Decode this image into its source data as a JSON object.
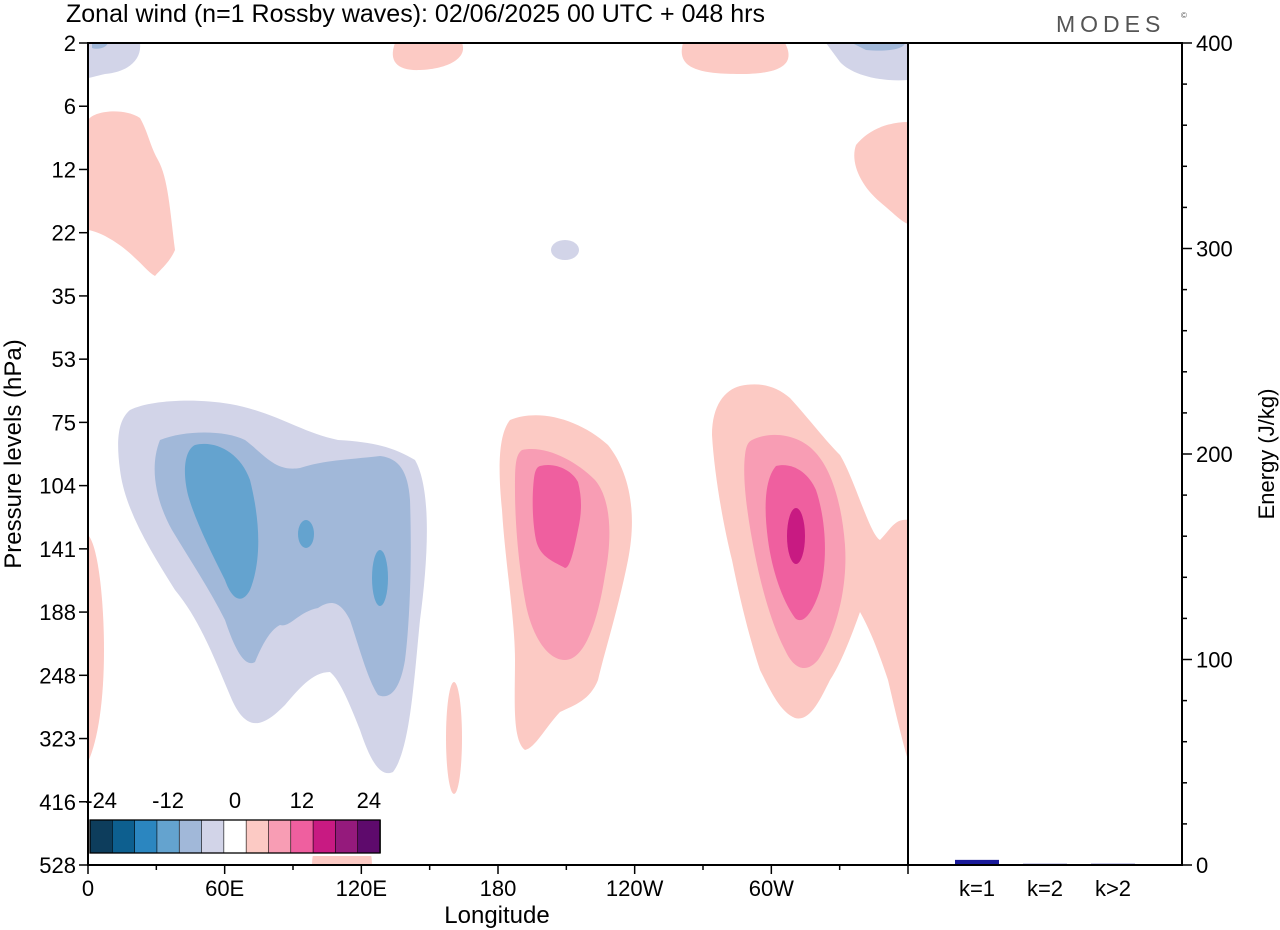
{
  "title": "Zonal wind (n=1 Rossby waves):  02/06/2025  00 UTC  + 048 hrs",
  "brand": "MODES",
  "brand_mark": "©",
  "chart_data": [
    {
      "type": "heatmap",
      "xlabel": "Longitude",
      "ylabel": "Pressure levels (hPa)",
      "x_ticks": [
        "0",
        "60E",
        "120E",
        "180",
        "120W",
        "60W"
      ],
      "y_ticks": [
        "2",
        "6",
        "12",
        "22",
        "35",
        "53",
        "75",
        "104",
        "141",
        "188",
        "248",
        "323",
        "416",
        "528"
      ],
      "colorbar": {
        "tick_labels": [
          "-24",
          "-12",
          "0",
          "12",
          "24"
        ],
        "levels": [
          -24,
          -20,
          -16,
          -12,
          -8,
          -4,
          0,
          4,
          8,
          12,
          16,
          20,
          24
        ],
        "colors": [
          "#0d3d5c",
          "#0d5f8f",
          "#2b86c0",
          "#64a3cf",
          "#a1b8d9",
          "#d2d4e8",
          "#ffffff",
          "#fccac4",
          "#f89db4",
          "#ef5f9f",
          "#c81a82",
          "#951a7c",
          "#5e0a6c"
        ]
      },
      "features": [
        {
          "label": "negative anomaly",
          "lon": [
            10,
            150
          ],
          "level_hPa": [
            75,
            416
          ],
          "min": -16
        },
        {
          "label": "positive anomaly",
          "lon": [
            185,
            235
          ],
          "level_hPa": [
            75,
            323
          ],
          "max": 16
        },
        {
          "label": "positive anomaly",
          "lon": [
            275,
            345
          ],
          "level_hPa": [
            75,
            323
          ],
          "max": 20
        },
        {
          "label": "weak positive",
          "lon": [
            0,
            40
          ],
          "level_hPa": [
            6,
            30
          ],
          "max": 4
        },
        {
          "label": "weak positive",
          "lon": [
            340,
            360
          ],
          "level_hPa": [
            8,
            20
          ],
          "max": 4
        },
        {
          "label": "weak negative",
          "lon": [
            0,
            20
          ],
          "level_hPa": [
            2,
            3
          ],
          "min": -4
        },
        {
          "label": "weak negative",
          "lon": [
            325,
            360
          ],
          "level_hPa": [
            2,
            3
          ],
          "min": -4
        }
      ]
    },
    {
      "type": "bar",
      "categories": [
        "k=1",
        "k=2",
        "k>2"
      ],
      "values": [
        2.5,
        0.3,
        0.6
      ],
      "ylabel": "Energy (J/kg)",
      "ylim": [
        0,
        400
      ],
      "y_ticks": [
        "0",
        "100",
        "200",
        "300",
        "400"
      ],
      "bar_color": "#1a1a9a"
    }
  ]
}
